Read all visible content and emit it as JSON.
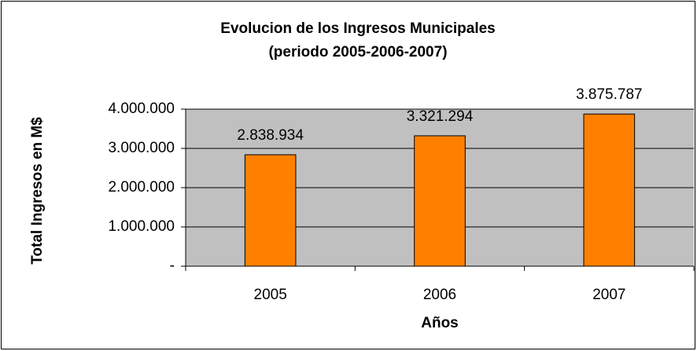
{
  "chart_data": {
    "type": "bar",
    "title": "Evolucion de los Ingresos Municipales",
    "subtitle": "(periodo 2005-2006-2007)",
    "y_label": "Total Ingresos en M$",
    "x_label": "Años",
    "categories": [
      "2005",
      "2006",
      "2007"
    ],
    "values": [
      2838934,
      3321294,
      3875787
    ],
    "value_labels": [
      "2.838.934",
      "3.321.294",
      "3.875.787"
    ],
    "color": "#ff8000",
    "ylim": [
      0,
      4000000
    ],
    "yticks": [
      {
        "value": 0,
        "label": "-"
      },
      {
        "value": 1000000,
        "label": "1.000.000"
      },
      {
        "value": 2000000,
        "label": "2.000.000"
      },
      {
        "value": 3000000,
        "label": "3.000.000"
      },
      {
        "value": 4000000,
        "label": "4.000.000"
      }
    ],
    "grid": true
  }
}
